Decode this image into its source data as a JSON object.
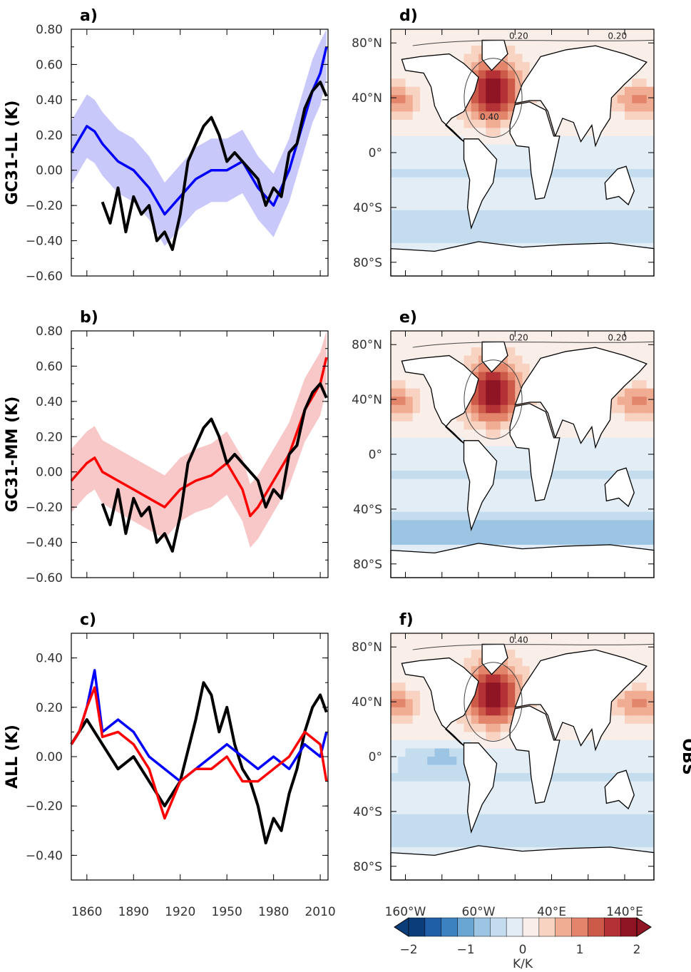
{
  "chart_data": [
    {
      "type": "line",
      "panel": "a)",
      "ylabel": "GC31-LL (K)",
      "xlim": [
        1850,
        2015
      ],
      "ylim": [
        -0.6,
        0.8
      ],
      "yticks": [
        "0.80",
        "0.60",
        "0.40",
        "0.20",
        "0.00",
        "−0.20",
        "−0.40",
        "−0.60"
      ],
      "series": [
        {
          "color": "#0000ff",
          "spread": "#c8c8fa",
          "x": [
            1850,
            1860,
            1865,
            1870,
            1880,
            1890,
            1900,
            1910,
            1920,
            1930,
            1940,
            1950,
            1960,
            1970,
            1980,
            1990,
            2000,
            2005,
            2010,
            2014
          ],
          "values": [
            0.1,
            0.25,
            0.22,
            0.15,
            0.05,
            0.0,
            -0.1,
            -0.25,
            -0.15,
            -0.05,
            0.0,
            0.0,
            0.05,
            -0.1,
            -0.2,
            0.0,
            0.3,
            0.45,
            0.55,
            0.7
          ]
        },
        {
          "color": "#000000",
          "x": [
            1870,
            1875,
            1880,
            1885,
            1890,
            1895,
            1900,
            1905,
            1910,
            1915,
            1920,
            1925,
            1930,
            1935,
            1940,
            1945,
            1950,
            1955,
            1960,
            1965,
            1970,
            1975,
            1980,
            1985,
            1990,
            1995,
            2000,
            2005,
            2010,
            2014
          ],
          "values": [
            -0.18,
            -0.3,
            -0.1,
            -0.35,
            -0.15,
            -0.25,
            -0.2,
            -0.4,
            -0.35,
            -0.45,
            -0.25,
            0.05,
            0.15,
            0.25,
            0.3,
            0.2,
            0.05,
            0.1,
            0.05,
            0.0,
            -0.05,
            -0.2,
            -0.1,
            -0.15,
            0.1,
            0.15,
            0.35,
            0.45,
            0.5,
            0.42
          ]
        }
      ]
    },
    {
      "type": "line",
      "panel": "b)",
      "ylabel": "GC31-MM (K)",
      "xlim": [
        1850,
        2015
      ],
      "ylim": [
        -0.6,
        0.8
      ],
      "yticks": [
        "0.80",
        "0.60",
        "0.40",
        "0.20",
        "0.00",
        "−0.20",
        "−0.40",
        "−0.60"
      ],
      "series": [
        {
          "color": "#ff0000",
          "spread": "#f8c8c8",
          "x": [
            1850,
            1860,
            1865,
            1870,
            1880,
            1890,
            1900,
            1910,
            1920,
            1930,
            1940,
            1950,
            1960,
            1965,
            1970,
            1980,
            1990,
            2000,
            2010,
            2014
          ],
          "values": [
            -0.05,
            0.05,
            0.08,
            0.0,
            -0.05,
            -0.1,
            -0.15,
            -0.2,
            -0.1,
            -0.05,
            -0.02,
            0.05,
            -0.1,
            -0.25,
            -0.2,
            -0.05,
            0.1,
            0.35,
            0.5,
            0.65
          ]
        },
        {
          "color": "#000000",
          "x": [
            1870,
            1875,
            1880,
            1885,
            1890,
            1895,
            1900,
            1905,
            1910,
            1915,
            1920,
            1925,
            1930,
            1935,
            1940,
            1945,
            1950,
            1955,
            1960,
            1965,
            1970,
            1975,
            1980,
            1985,
            1990,
            1995,
            2000,
            2005,
            2010,
            2014
          ],
          "values": [
            -0.18,
            -0.3,
            -0.1,
            -0.35,
            -0.15,
            -0.25,
            -0.2,
            -0.4,
            -0.35,
            -0.45,
            -0.25,
            0.05,
            0.15,
            0.25,
            0.3,
            0.2,
            0.05,
            0.1,
            0.05,
            0.0,
            -0.05,
            -0.2,
            -0.1,
            -0.15,
            0.1,
            0.15,
            0.35,
            0.45,
            0.5,
            0.42
          ]
        }
      ]
    },
    {
      "type": "line",
      "panel": "c)",
      "ylabel": "ALL (K)",
      "xlim": [
        1850,
        2015
      ],
      "ylim": [
        -0.5,
        0.5
      ],
      "yticks": [
        "0.40",
        "0.20",
        "0.00",
        "−0.20",
        "−0.40"
      ],
      "xticks": [
        "1860",
        "1890",
        "1920",
        "1950",
        "1980",
        "2010"
      ],
      "series": [
        {
          "color": "#000000",
          "x": [
            1850,
            1860,
            1870,
            1880,
            1890,
            1900,
            1910,
            1920,
            1930,
            1935,
            1940,
            1945,
            1950,
            1955,
            1960,
            1965,
            1970,
            1975,
            1980,
            1985,
            1990,
            1995,
            2000,
            2005,
            2010,
            2014
          ],
          "values": [
            0.05,
            0.15,
            0.05,
            -0.05,
            0.0,
            -0.1,
            -0.2,
            -0.1,
            0.15,
            0.3,
            0.25,
            0.1,
            0.2,
            0.05,
            -0.05,
            -0.1,
            -0.2,
            -0.35,
            -0.25,
            -0.3,
            -0.15,
            -0.05,
            0.1,
            0.2,
            0.25,
            0.18
          ]
        },
        {
          "color": "#0000ff",
          "x": [
            1850,
            1855,
            1860,
            1865,
            1870,
            1880,
            1890,
            1900,
            1910,
            1920,
            1930,
            1940,
            1950,
            1960,
            1970,
            1980,
            1990,
            2000,
            2010,
            2014
          ],
          "values": [
            0.05,
            0.1,
            0.2,
            0.35,
            0.1,
            0.15,
            0.1,
            0.0,
            -0.05,
            -0.1,
            -0.05,
            0.0,
            0.05,
            0.0,
            -0.05,
            0.0,
            -0.05,
            0.05,
            0.0,
            0.1
          ]
        },
        {
          "color": "#ff0000",
          "x": [
            1850,
            1855,
            1860,
            1865,
            1870,
            1880,
            1890,
            1900,
            1910,
            1920,
            1930,
            1940,
            1950,
            1960,
            1970,
            1980,
            1990,
            2000,
            2010,
            2014
          ],
          "values": [
            0.05,
            0.1,
            0.2,
            0.28,
            0.08,
            0.1,
            0.05,
            -0.05,
            -0.25,
            -0.1,
            -0.05,
            -0.05,
            0.0,
            -0.1,
            -0.1,
            -0.05,
            0.0,
            0.1,
            0.05,
            -0.1
          ]
        }
      ]
    },
    {
      "type": "heatmap",
      "panel": "d)",
      "yticks": [
        "80°N",
        "40°N",
        "0°",
        "40°S",
        "80°S"
      ],
      "contours": [
        "0.20",
        "0.20",
        "0.40"
      ]
    },
    {
      "type": "heatmap",
      "panel": "e)",
      "yticks": [
        "80°N",
        "40°N",
        "0°",
        "40°S",
        "80°S"
      ],
      "contours": [
        "0.20",
        "0.20"
      ]
    },
    {
      "type": "heatmap",
      "panel": "f)",
      "side_label": "OBS",
      "yticks": [
        "80°N",
        "40°N",
        "0°",
        "40°S",
        "80°S"
      ],
      "xticks": [
        "160°W",
        "60°W",
        "40°E",
        "140°E"
      ],
      "contours": [
        "0.40"
      ]
    }
  ],
  "colorbar": {
    "labels": [
      "−2",
      "−1",
      "0",
      "1",
      "2"
    ],
    "unit": "K/K",
    "colors": [
      "#0b3d7a",
      "#1f5fa8",
      "#3b82c0",
      "#6aa6d3",
      "#9cc5e3",
      "#c3dcee",
      "#e2edf6",
      "#f9eee8",
      "#f8d3c2",
      "#f1ad93",
      "#e2856b",
      "#cc5a49",
      "#b43236",
      "#8f1424"
    ]
  }
}
